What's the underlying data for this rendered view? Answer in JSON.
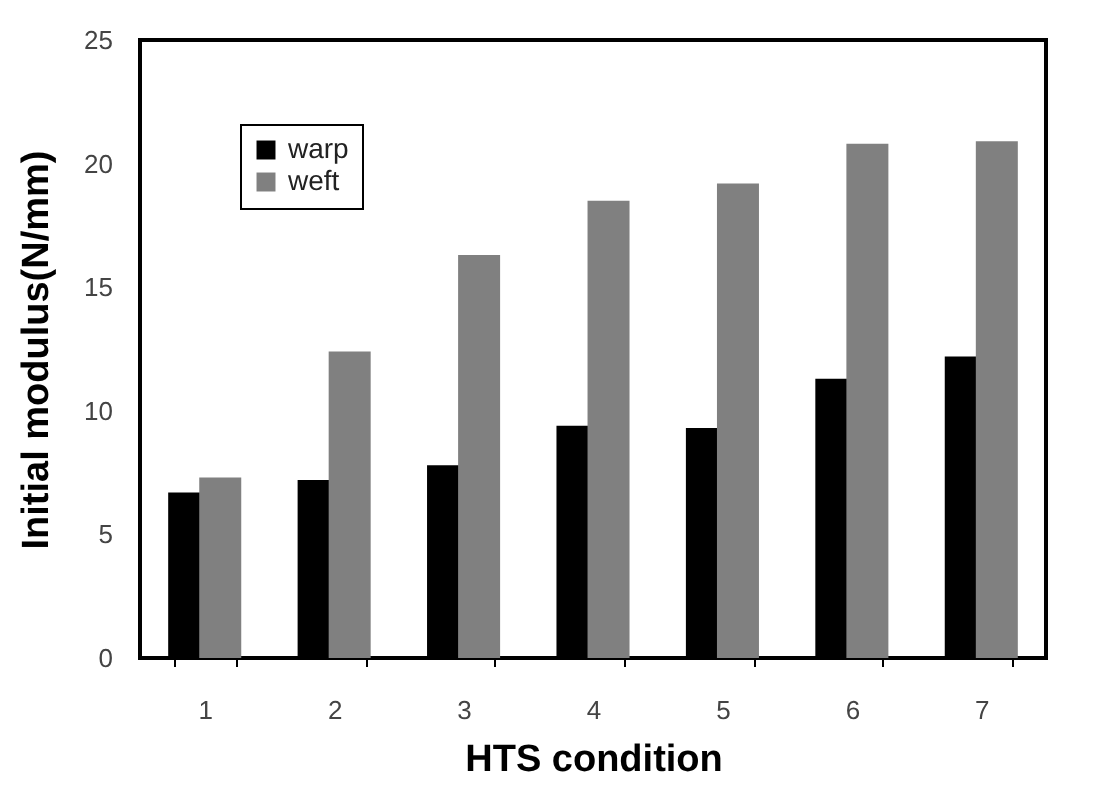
{
  "chart_data": {
    "type": "bar",
    "xlabel": "HTS condition",
    "ylabel": "Initial modulus(N/mm)",
    "categories": [
      "1",
      "2",
      "3",
      "4",
      "5",
      "6",
      "7"
    ],
    "series": [
      {
        "name": "warp",
        "color": "#000000",
        "values": [
          6.7,
          7.2,
          7.8,
          9.4,
          9.3,
          11.3,
          12.2
        ]
      },
      {
        "name": "weft",
        "color": "#808080",
        "values": [
          7.3,
          12.4,
          16.3,
          18.5,
          19.2,
          20.8,
          20.9
        ]
      }
    ],
    "ylim": [
      0,
      25
    ],
    "yticks": [
      0,
      5,
      10,
      15,
      20,
      25
    ],
    "grid": false,
    "legend": "top left"
  }
}
